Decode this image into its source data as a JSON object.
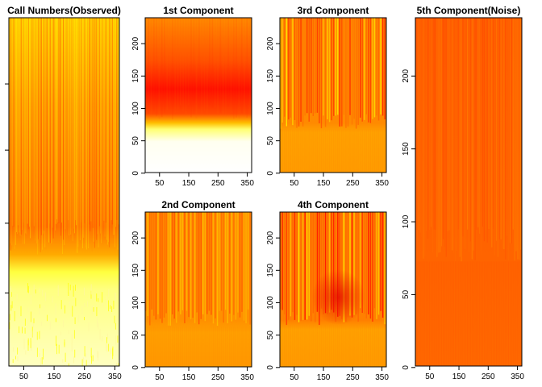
{
  "chart_data": [
    {
      "type": "heatmap",
      "title": "Call Numbers(Observed)",
      "colormap": [
        "#ff0000",
        "#ff8000",
        "#ffff00",
        "#ffffd0"
      ],
      "x_ticks": [
        50,
        150,
        250,
        350
      ],
      "y_ticks": [],
      "xlim": [
        1,
        365
      ],
      "ylim": [
        1,
        240
      ],
      "pattern": "vertical stripes dark-red/orange/yellow above ~y=75, pale yellow speckle below"
    },
    {
      "type": "heatmap",
      "title": "1st Component",
      "colormap": [
        "#ff0000",
        "#ff8000",
        "#ffff00",
        "#ffffe8"
      ],
      "x_ticks": [
        50,
        150,
        250,
        350
      ],
      "y_ticks": [
        0,
        50,
        100,
        150,
        200
      ],
      "xlim": [
        1,
        365
      ],
      "ylim": [
        1,
        240
      ],
      "pattern": "smooth horizontal bands: red peak near y=100, orange above, white below y=70"
    },
    {
      "type": "heatmap",
      "title": "2nd Component",
      "colormap": [
        "#ff4000",
        "#ff9000",
        "#ffd000"
      ],
      "x_ticks": [
        50,
        150,
        250,
        350
      ],
      "y_ticks": [
        0,
        50,
        100,
        150,
        200
      ],
      "xlim": [
        1,
        365
      ],
      "ylim": [
        1,
        240
      ],
      "pattern": "regular vertical stripes above y=60, uniform orange below"
    },
    {
      "type": "heatmap",
      "title": "3rd Component",
      "colormap": [
        "#ff2000",
        "#ff9000",
        "#ffff00"
      ],
      "x_ticks": [
        50,
        150,
        250,
        350
      ],
      "y_ticks": [
        0,
        50,
        100,
        150,
        200
      ],
      "xlim": [
        1,
        365
      ],
      "ylim": [
        1,
        240
      ],
      "pattern": "strong vertical stripes above y=70, uniform orange below"
    },
    {
      "type": "heatmap",
      "title": "4th Component",
      "colormap": [
        "#ff0000",
        "#ff8000",
        "#ffff00"
      ],
      "x_ticks": [
        50,
        150,
        250,
        350
      ],
      "y_ticks": [
        0,
        50,
        100,
        150,
        200
      ],
      "xlim": [
        1,
        365
      ],
      "ylim": [
        1,
        240
      ],
      "pattern": "vertical stripes above y=65 with red patch near x=200, y=100, orange below"
    },
    {
      "type": "heatmap",
      "title": "5th Component(Noise)",
      "colormap": [
        "#ff4000",
        "#ff6a00",
        "#ffb000"
      ],
      "x_ticks": [
        50,
        150,
        250,
        350
      ],
      "y_ticks": [
        0,
        50,
        100,
        150,
        200
      ],
      "xlim": [
        1,
        365
      ],
      "ylim": [
        1,
        240
      ],
      "pattern": "mostly uniform orange-red with faint vertical streaks"
    }
  ]
}
